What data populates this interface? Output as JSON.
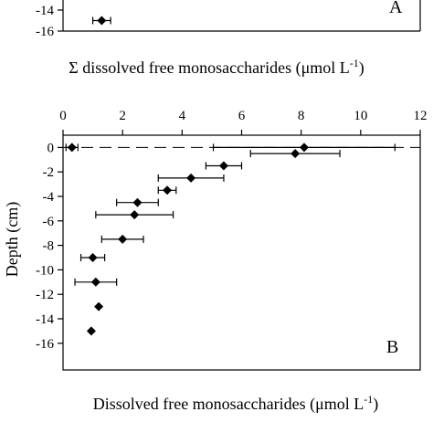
{
  "chart_data": [
    {
      "panel_label": "A",
      "type": "scatter",
      "visible_ticks": [
        -14,
        -16
      ],
      "points": [
        {
          "x": 1.3,
          "y": -15,
          "xerr": 0.3
        }
      ],
      "xlabel": "Σ dissolved free monosaccharides (μmol L",
      "xlabel_sup": "-1",
      "xlabel_tail": ")"
    },
    {
      "panel_label": "B",
      "type": "scatter",
      "xlim": [
        0,
        12
      ],
      "ylim": [
        -16,
        1
      ],
      "x_ticks": [
        "0",
        "2",
        "4",
        "6",
        "8",
        "10",
        "12"
      ],
      "y_ticks": [
        "0",
        "-2",
        "-4",
        "-6",
        "-8",
        "-10",
        "-12",
        "-14",
        "-16"
      ],
      "ylabel": "Depth (cm)",
      "xlabel": "Dissolved free monosaccharides (μmol L",
      "xlabel_sup": "-1",
      "xlabel_tail": ")",
      "reference_line_y": 0,
      "points": [
        {
          "x": 0.3,
          "y": 0,
          "xerr": 0.2
        },
        {
          "x": 8.1,
          "y": 0,
          "xerr": 3.05
        },
        {
          "x": 7.8,
          "y": -0.5,
          "xerr": 1.5
        },
        {
          "x": 5.4,
          "y": -1.5,
          "xerr": 0.6
        },
        {
          "x": 4.3,
          "y": -2.5,
          "xerr": 1.1
        },
        {
          "x": 3.5,
          "y": -3.5,
          "xerr": 0.3
        },
        {
          "x": 2.5,
          "y": -4.5,
          "xerr": 0.7
        },
        {
          "x": 2.4,
          "y": -5.5,
          "xerr": 1.3
        },
        {
          "x": 2.0,
          "y": -7.5,
          "xerr": 0.7
        },
        {
          "x": 1.0,
          "y": -9,
          "xerr": 0.4
        },
        {
          "x": 1.1,
          "y": -11,
          "xerr": 0.7
        },
        {
          "x": 1.2,
          "y": -13,
          "xerr": 0
        },
        {
          "x": 0.95,
          "y": -15,
          "xerr": 0
        }
      ]
    }
  ]
}
